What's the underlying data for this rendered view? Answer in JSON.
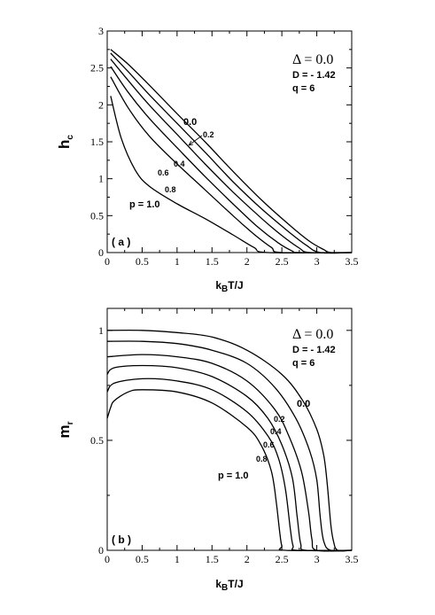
{
  "chart_data": [
    {
      "type": "line",
      "panel_label": "( a )",
      "ylabel_main": "h",
      "ylabel_sub": "c",
      "xlabel_main": "k",
      "xlabel_sub": "B",
      "xlabel_tail": "T/J",
      "xlim": [
        0,
        3.5
      ],
      "ylim": [
        0,
        3
      ],
      "x_ticks": [
        {
          "v": 0,
          "label": "0"
        },
        {
          "v": 0.5,
          "label": "0.5"
        },
        {
          "v": 1,
          "label": "1"
        },
        {
          "v": 1.5,
          "label": "1.5"
        },
        {
          "v": 2,
          "label": "2"
        },
        {
          "v": 2.5,
          "label": "2.5"
        },
        {
          "v": 3,
          "label": "3"
        },
        {
          "v": 3.5,
          "label": "3.5"
        }
      ],
      "y_ticks": [
        {
          "v": 0,
          "label": "0"
        },
        {
          "v": 0.5,
          "label": "0.5"
        },
        {
          "v": 1,
          "label": "1"
        },
        {
          "v": 1.5,
          "label": "1.5"
        },
        {
          "v": 2,
          "label": "2"
        },
        {
          "v": 2.5,
          "label": "2.5"
        },
        {
          "v": 3,
          "label": "3"
        }
      ],
      "annotations": {
        "delta": "Δ = 0.0",
        "d": "D = - 1.42",
        "q": "q = 6"
      },
      "series": [
        {
          "label": "0.0",
          "points": [
            [
              0.05,
              2.75
            ],
            [
              0.3,
              2.55
            ],
            [
              0.6,
              2.27
            ],
            [
              1.0,
              1.88
            ],
            [
              1.4,
              1.5
            ],
            [
              1.8,
              1.1
            ],
            [
              2.2,
              0.72
            ],
            [
              2.6,
              0.38
            ],
            [
              2.9,
              0.15
            ],
            [
              3.1,
              0.04
            ],
            [
              3.2,
              0.0
            ],
            [
              3.5,
              0.0
            ]
          ]
        },
        {
          "label": "0.2",
          "points": [
            [
              0.05,
              2.7
            ],
            [
              0.3,
              2.45
            ],
            [
              0.6,
              2.14
            ],
            [
              1.0,
              1.75
            ],
            [
              1.4,
              1.36
            ],
            [
              1.8,
              0.96
            ],
            [
              2.2,
              0.6
            ],
            [
              2.6,
              0.28
            ],
            [
              2.85,
              0.1
            ],
            [
              3.05,
              0.0
            ],
            [
              3.5,
              0.0
            ]
          ]
        },
        {
          "label": "0.4",
          "points": [
            [
              0.05,
              2.62
            ],
            [
              0.3,
              2.33
            ],
            [
              0.6,
              2.0
            ],
            [
              1.0,
              1.6
            ],
            [
              1.4,
              1.2
            ],
            [
              1.8,
              0.82
            ],
            [
              2.2,
              0.47
            ],
            [
              2.5,
              0.23
            ],
            [
              2.75,
              0.06
            ],
            [
              2.9,
              0.0
            ],
            [
              3.5,
              0.0
            ]
          ]
        },
        {
          "label": "0.6",
          "points": [
            [
              0.05,
              2.52
            ],
            [
              0.3,
              2.17
            ],
            [
              0.6,
              1.82
            ],
            [
              1.0,
              1.42
            ],
            [
              1.4,
              1.03
            ],
            [
              1.8,
              0.66
            ],
            [
              2.15,
              0.35
            ],
            [
              2.45,
              0.13
            ],
            [
              2.65,
              0.02
            ],
            [
              2.75,
              0.0
            ],
            [
              3.5,
              0.0
            ]
          ]
        },
        {
          "label": "0.8",
          "points": [
            [
              0.05,
              2.38
            ],
            [
              0.3,
              1.96
            ],
            [
              0.6,
              1.58
            ],
            [
              1.0,
              1.2
            ],
            [
              1.4,
              0.85
            ],
            [
              1.8,
              0.5
            ],
            [
              2.1,
              0.25
            ],
            [
              2.35,
              0.07
            ],
            [
              2.5,
              0.0
            ],
            [
              3.5,
              0.0
            ]
          ]
        },
        {
          "label": "p = 1.0",
          "points": [
            [
              0.05,
              2.12
            ],
            [
              0.2,
              1.55
            ],
            [
              0.4,
              1.12
            ],
            [
              0.6,
              0.9
            ],
            [
              1.0,
              0.66
            ],
            [
              1.4,
              0.46
            ],
            [
              1.8,
              0.24
            ],
            [
              2.1,
              0.07
            ],
            [
              2.3,
              0.0
            ],
            [
              3.5,
              0.0
            ]
          ]
        }
      ]
    },
    {
      "type": "line",
      "panel_label": "( b )",
      "ylabel_main": "m",
      "ylabel_sub": "r",
      "xlabel_main": "k",
      "xlabel_sub": "B",
      "xlabel_tail": "T/J",
      "xlim": [
        0,
        3.5
      ],
      "ylim": [
        0,
        1.1
      ],
      "x_ticks": [
        {
          "v": 0,
          "label": "0"
        },
        {
          "v": 0.5,
          "label": "0.5"
        },
        {
          "v": 1,
          "label": "1"
        },
        {
          "v": 1.5,
          "label": "1.5"
        },
        {
          "v": 2,
          "label": "2"
        },
        {
          "v": 2.5,
          "label": "2.5"
        },
        {
          "v": 3,
          "label": "3"
        },
        {
          "v": 3.5,
          "label": "3.5"
        }
      ],
      "y_ticks": [
        {
          "v": 0,
          "label": "0"
        },
        {
          "v": 0.5,
          "label": "0.5"
        },
        {
          "v": 1,
          "label": "1"
        }
      ],
      "annotations": {
        "delta": "Δ = 0.0",
        "d": "D = - 1.42",
        "q": "q = 6"
      },
      "series": [
        {
          "label": "0.0",
          "points": [
            [
              0.0,
              1.0
            ],
            [
              0.5,
              1.0
            ],
            [
              1.0,
              0.99
            ],
            [
              1.5,
              0.97
            ],
            [
              2.0,
              0.91
            ],
            [
              2.5,
              0.8
            ],
            [
              2.8,
              0.68
            ],
            [
              3.0,
              0.55
            ],
            [
              3.1,
              0.43
            ],
            [
              3.15,
              0.3
            ],
            [
              3.2,
              0.12
            ],
            [
              3.24,
              0.04
            ],
            [
              3.3,
              0.0
            ],
            [
              3.5,
              0.0
            ]
          ]
        },
        {
          "label": "0.2",
          "points": [
            [
              0.0,
              0.95
            ],
            [
              0.5,
              0.95
            ],
            [
              1.0,
              0.94
            ],
            [
              1.5,
              0.91
            ],
            [
              2.0,
              0.85
            ],
            [
              2.4,
              0.74
            ],
            [
              2.7,
              0.6
            ],
            [
              2.9,
              0.45
            ],
            [
              3.0,
              0.32
            ],
            [
              3.05,
              0.15
            ],
            [
              3.1,
              0.04
            ],
            [
              3.2,
              0.0
            ],
            [
              3.5,
              0.0
            ]
          ]
        },
        {
          "label": "0.4",
          "points": [
            [
              0.0,
              0.88
            ],
            [
              0.5,
              0.89
            ],
            [
              1.0,
              0.88
            ],
            [
              1.5,
              0.85
            ],
            [
              2.0,
              0.77
            ],
            [
              2.4,
              0.64
            ],
            [
              2.6,
              0.52
            ],
            [
              2.78,
              0.36
            ],
            [
              2.88,
              0.18
            ],
            [
              2.93,
              0.05
            ],
            [
              3.0,
              0.0
            ],
            [
              3.5,
              0.0
            ]
          ]
        },
        {
          "label": "0.6",
          "points": [
            [
              0.0,
              0.8
            ],
            [
              0.1,
              0.83
            ],
            [
              0.5,
              0.84
            ],
            [
              1.0,
              0.83
            ],
            [
              1.5,
              0.79
            ],
            [
              2.0,
              0.7
            ],
            [
              2.3,
              0.6
            ],
            [
              2.5,
              0.48
            ],
            [
              2.65,
              0.33
            ],
            [
              2.72,
              0.15
            ],
            [
              2.77,
              0.03
            ],
            [
              2.85,
              0.0
            ],
            [
              3.5,
              0.0
            ]
          ]
        },
        {
          "label": "0.8",
          "points": [
            [
              0.0,
              0.72
            ],
            [
              0.1,
              0.76
            ],
            [
              0.5,
              0.78
            ],
            [
              1.0,
              0.77
            ],
            [
              1.5,
              0.73
            ],
            [
              2.0,
              0.63
            ],
            [
              2.3,
              0.52
            ],
            [
              2.45,
              0.42
            ],
            [
              2.55,
              0.28
            ],
            [
              2.62,
              0.1
            ],
            [
              2.66,
              0.02
            ],
            [
              2.72,
              0.0
            ],
            [
              3.5,
              0.0
            ]
          ]
        },
        {
          "label": "p = 1.0",
          "points": [
            [
              0.0,
              0.6
            ],
            [
              0.05,
              0.65
            ],
            [
              0.1,
              0.68
            ],
            [
              0.3,
              0.72
            ],
            [
              0.5,
              0.73
            ],
            [
              1.0,
              0.72
            ],
            [
              1.5,
              0.67
            ],
            [
              2.0,
              0.56
            ],
            [
              2.2,
              0.48
            ],
            [
              2.35,
              0.36
            ],
            [
              2.42,
              0.22
            ],
            [
              2.47,
              0.08
            ],
            [
              2.5,
              0.02
            ],
            [
              2.55,
              0.0
            ],
            [
              3.5,
              0.0
            ]
          ]
        }
      ]
    }
  ]
}
